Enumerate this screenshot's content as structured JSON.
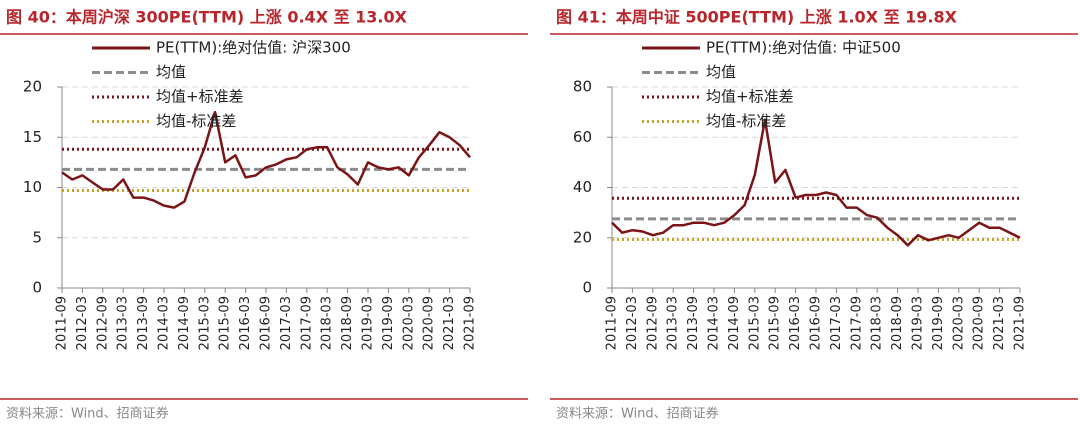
{
  "chart_data": [
    {
      "type": "line",
      "title": "图 40：本周沪深 300PE(TTM) 上涨 0.4X 至 13.0X",
      "source": "资料来源：Wind、招商证券",
      "categories": [
        "2011-09",
        null,
        "2012-03",
        null,
        "2012-09",
        null,
        "2013-03",
        null,
        "2013-09",
        null,
        "2014-03",
        null,
        "2014-09",
        null,
        "2015-03",
        null,
        "2015-09",
        null,
        "2016-03",
        null,
        "2016-09",
        null,
        "2017-03",
        null,
        "2017-09",
        null,
        "2018-03",
        null,
        "2018-09",
        null,
        "2019-03",
        null,
        "2019-09",
        null,
        "2020-03",
        null,
        "2020-09",
        null,
        "2021-03",
        null,
        "2021-09"
      ],
      "series": [
        {
          "name": "PE(TTM):绝对估值: 沪深300",
          "color": "#7a1416",
          "values": [
            11.5,
            10.8,
            11.2,
            10.5,
            9.8,
            9.8,
            10.8,
            9.0,
            9.0,
            8.7,
            8.2,
            8.0,
            8.6,
            11.5,
            14.0,
            17.5,
            12.5,
            13.2,
            11.0,
            11.2,
            12.0,
            12.3,
            12.8,
            13.0,
            13.8,
            14.0,
            14.0,
            12.0,
            11.3,
            10.3,
            12.5,
            12.0,
            11.8,
            12.0,
            11.2,
            13.0,
            14.2,
            15.5,
            15.0,
            14.2,
            13.0
          ]
        }
      ],
      "reference_lines": [
        {
          "name": "均值",
          "color": "#8c8c8c",
          "style": "dashed",
          "value": 11.8
        },
        {
          "name": "均值+标准差",
          "color": "#7a1416",
          "style": "dotted",
          "value": 13.8
        },
        {
          "name": "均值-标准差",
          "color": "#c9a227",
          "style": "dotted",
          "value": 9.7
        }
      ],
      "ylim": [
        0,
        20
      ],
      "yticks": [
        0,
        5,
        10,
        15,
        20
      ],
      "grid": true
    },
    {
      "type": "line",
      "title": "图 41：本周中证 500PE(TTM) 上涨 1.0X 至 19.8X",
      "source": "资料来源：Wind、招商证券",
      "categories": [
        "2011-09",
        null,
        "2012-03",
        null,
        "2012-09",
        null,
        "2013-03",
        null,
        "2013-09",
        null,
        "2014-03",
        null,
        "2014-09",
        null,
        "2015-03",
        null,
        "2015-09",
        null,
        "2016-03",
        null,
        "2016-09",
        null,
        "2017-03",
        null,
        "2017-09",
        null,
        "2018-03",
        null,
        "2018-09",
        null,
        "2019-03",
        null,
        "2019-09",
        null,
        "2020-03",
        null,
        "2020-09",
        null,
        "2021-03",
        null,
        "2021-09"
      ],
      "series": [
        {
          "name": "PE(TTM):绝对估值: 中证500",
          "color": "#7a1416",
          "values": [
            26,
            22,
            23,
            22.5,
            21,
            22,
            25,
            25,
            26,
            26,
            25,
            26,
            29,
            33,
            45,
            67,
            42,
            47,
            36,
            37,
            37,
            38,
            37,
            32,
            32,
            29,
            28,
            24,
            21,
            17,
            21,
            19,
            20,
            21,
            20,
            23,
            26,
            24,
            24,
            22,
            20
          ]
        }
      ],
      "reference_lines": [
        {
          "name": "均值",
          "color": "#8c8c8c",
          "style": "dashed",
          "value": 27.5
        },
        {
          "name": "均值+标准差",
          "color": "#7a1416",
          "style": "dotted",
          "value": 35.7
        },
        {
          "name": "均值-标准差",
          "color": "#c9a227",
          "style": "dotted",
          "value": 19.3
        }
      ],
      "ylim": [
        0,
        80
      ],
      "yticks": [
        0,
        20,
        40,
        60,
        80
      ],
      "grid": true
    }
  ]
}
